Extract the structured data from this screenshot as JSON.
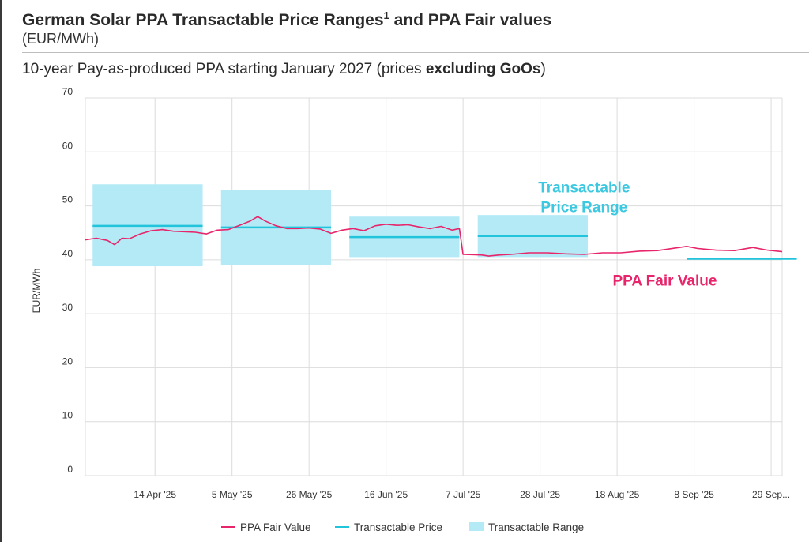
{
  "header": {
    "title": "German Solar PPA Transactable Price Ranges",
    "title_sup": "1",
    "title_tail": " and PPA Fair values",
    "unit": "(EUR/MWh)",
    "subtitle_pre": "10-year Pay-as-produced PPA starting January 2027 (prices ",
    "subtitle_bold": "excluding GoOs",
    "subtitle_post": ")"
  },
  "chart_data": {
    "type": "line",
    "title": "German Solar PPA Transactable Price Ranges¹ and PPA Fair values",
    "ylabel": "EUR/MWh",
    "ylim": [
      0,
      70
    ],
    "yticks": [
      0,
      10,
      20,
      30,
      40,
      50,
      60,
      70
    ],
    "grid": true,
    "xlim": [
      "2025-03-26",
      "2025-10-02"
    ],
    "xticks": [
      {
        "date": "2025-04-14",
        "label": "14 Apr '25"
      },
      {
        "date": "2025-05-05",
        "label": "5 May '25"
      },
      {
        "date": "2025-05-26",
        "label": "26 May '25"
      },
      {
        "date": "2025-06-16",
        "label": "16 Jun '25"
      },
      {
        "date": "2025-07-07",
        "label": "7 Jul '25"
      },
      {
        "date": "2025-07-28",
        "label": "28 Jul '25"
      },
      {
        "date": "2025-08-18",
        "label": "18 Aug '25"
      },
      {
        "date": "2025-09-08",
        "label": "8 Sep '25"
      },
      {
        "date": "2025-09-29",
        "label": "29 Sep..."
      }
    ],
    "series": [
      {
        "name": "PPA Fair Value",
        "color": "#e8246a",
        "points": [
          [
            "2025-03-26",
            43.7
          ],
          [
            "2025-03-29",
            44.0
          ],
          [
            "2025-04-01",
            43.6
          ],
          [
            "2025-04-03",
            42.8
          ],
          [
            "2025-04-05",
            44.0
          ],
          [
            "2025-04-07",
            43.9
          ],
          [
            "2025-04-10",
            44.8
          ],
          [
            "2025-04-13",
            45.4
          ],
          [
            "2025-04-16",
            45.6
          ],
          [
            "2025-04-19",
            45.3
          ],
          [
            "2025-04-22",
            45.2
          ],
          [
            "2025-04-25",
            45.1
          ],
          [
            "2025-04-28",
            44.8
          ],
          [
            "2025-05-01",
            45.5
          ],
          [
            "2025-05-04",
            45.6
          ],
          [
            "2025-05-07",
            46.4
          ],
          [
            "2025-05-10",
            47.2
          ],
          [
            "2025-05-12",
            48.0
          ],
          [
            "2025-05-14",
            47.2
          ],
          [
            "2025-05-17",
            46.3
          ],
          [
            "2025-05-20",
            45.8
          ],
          [
            "2025-05-23",
            45.8
          ],
          [
            "2025-05-26",
            45.9
          ],
          [
            "2025-05-29",
            45.7
          ],
          [
            "2025-06-01",
            44.9
          ],
          [
            "2025-06-04",
            45.5
          ],
          [
            "2025-06-07",
            45.8
          ],
          [
            "2025-06-10",
            45.4
          ],
          [
            "2025-06-13",
            46.3
          ],
          [
            "2025-06-16",
            46.6
          ],
          [
            "2025-06-19",
            46.4
          ],
          [
            "2025-06-22",
            46.5
          ],
          [
            "2025-06-25",
            46.1
          ],
          [
            "2025-06-28",
            45.8
          ],
          [
            "2025-07-01",
            46.2
          ],
          [
            "2025-07-04",
            45.5
          ],
          [
            "2025-07-06",
            45.8
          ],
          [
            "2025-07-07",
            41.0
          ],
          [
            "2025-07-12",
            40.9
          ],
          [
            "2025-07-14",
            40.7
          ],
          [
            "2025-07-17",
            40.9
          ],
          [
            "2025-07-20",
            41.0
          ],
          [
            "2025-07-25",
            41.3
          ],
          [
            "2025-07-30",
            41.3
          ],
          [
            "2025-08-04",
            41.1
          ],
          [
            "2025-08-09",
            41.0
          ],
          [
            "2025-08-14",
            41.3
          ],
          [
            "2025-08-19",
            41.3
          ],
          [
            "2025-08-24",
            41.6
          ],
          [
            "2025-08-29",
            41.7
          ],
          [
            "2025-09-03",
            42.2
          ],
          [
            "2025-09-06",
            42.5
          ],
          [
            "2025-09-09",
            42.1
          ],
          [
            "2025-09-14",
            41.8
          ],
          [
            "2025-09-19",
            41.7
          ],
          [
            "2025-09-24",
            42.3
          ],
          [
            "2025-09-28",
            41.8
          ],
          [
            "2025-10-02",
            41.5
          ]
        ]
      },
      {
        "name": "Transactable Price",
        "color": "#22c4dc",
        "segments": [
          {
            "start": "2025-03-28",
            "end": "2025-04-27",
            "value": 46.3
          },
          {
            "start": "2025-05-02",
            "end": "2025-06-01",
            "value": 46.0
          },
          {
            "start": "2025-06-06",
            "end": "2025-07-06",
            "value": 44.2
          },
          {
            "start": "2025-07-11",
            "end": "2025-08-10",
            "value": 44.4
          },
          {
            "start": "2025-09-06",
            "end": "2025-10-06",
            "value": 40.2
          }
        ]
      },
      {
        "name": "Transactable Range",
        "color": "#b3eaf6",
        "ranges": [
          {
            "start": "2025-03-28",
            "end": "2025-04-27",
            "low": 38.8,
            "high": 54.0
          },
          {
            "start": "2025-05-02",
            "end": "2025-06-01",
            "low": 39.0,
            "high": 53.0
          },
          {
            "start": "2025-06-06",
            "end": "2025-07-06",
            "low": 40.5,
            "high": 48.0
          },
          {
            "start": "2025-07-11",
            "end": "2025-08-10",
            "low": 40.5,
            "high": 48.3
          }
        ]
      }
    ],
    "annotations": [
      {
        "id": "range",
        "lines": [
          "Transactable",
          "Price Range"
        ],
        "at_date": "2025-08-09",
        "at_value": 52.5
      },
      {
        "id": "fair",
        "lines": [
          "PPA Fair Value"
        ],
        "at_date": "2025-08-31",
        "at_value": 35.2
      }
    ],
    "legend": {
      "position": "bottom-center",
      "items": [
        {
          "label": "PPA Fair Value",
          "kind": "line",
          "color": "#e8246a"
        },
        {
          "label": "Transactable Price",
          "kind": "line",
          "color": "#22c4dc"
        },
        {
          "label": "Transactable Range",
          "kind": "box",
          "color": "#b3eaf6"
        }
      ]
    }
  }
}
